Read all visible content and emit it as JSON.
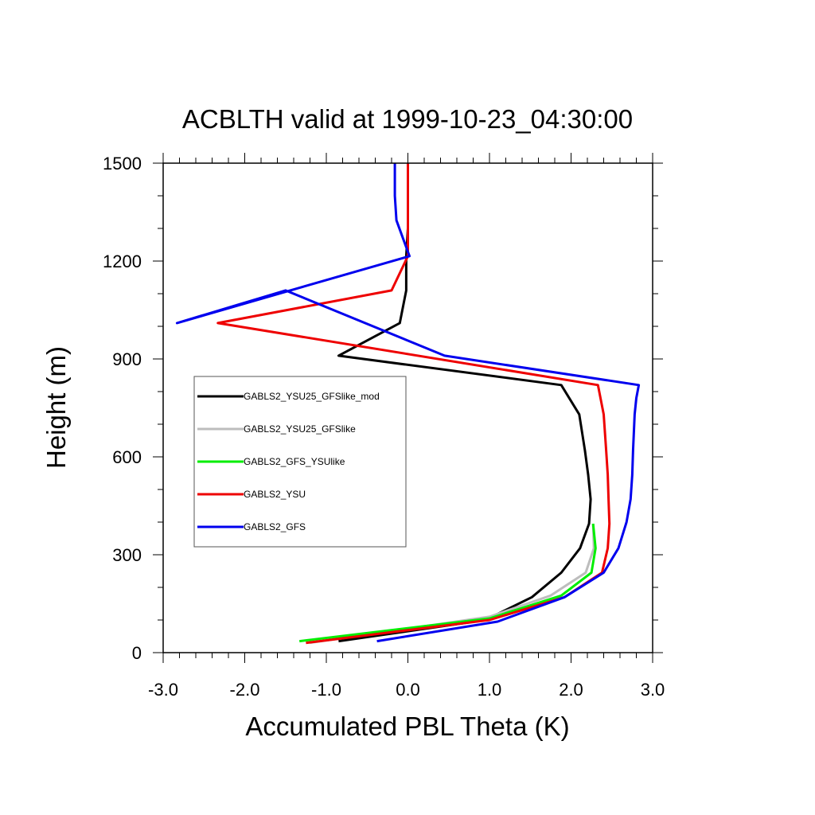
{
  "chart_data": {
    "type": "line",
    "title": "ACBLTH valid at 1999-10-23_04:30:00",
    "xlabel": "Accumulated PBL Theta (K)",
    "ylabel": "Height (m)",
    "xlim": [
      -3.0,
      3.0
    ],
    "ylim": [
      0,
      1500
    ],
    "xticks": [
      -3.0,
      -2.0,
      -1.0,
      0.0,
      1.0,
      2.0,
      3.0
    ],
    "xtick_labels": [
      "-3.0",
      "-2.0",
      "-1.0",
      "0.0",
      "1.0",
      "2.0",
      "3.0"
    ],
    "yticks": [
      0,
      300,
      600,
      900,
      1200,
      1500
    ],
    "ytick_labels": [
      "0",
      "300",
      "600",
      "900",
      "1200",
      "1500"
    ],
    "grid": false,
    "legend_position": "center-left",
    "series": [
      {
        "name": "GABLS2_YSU25_GFSlike_mod",
        "color": "#000000",
        "x": [
          -0.85,
          0.95,
          1.52,
          1.88,
          2.11,
          2.22,
          2.24,
          2.21,
          2.17,
          2.1,
          1.88,
          -0.85,
          -0.1,
          -0.02,
          -0.02,
          0.0,
          0.0,
          0.0,
          0.0
        ],
        "y": [
          35,
          100,
          170,
          245,
          320,
          395,
          470,
          545,
          620,
          730,
          820,
          910,
          1010,
          1110,
          1215,
          1300,
          1350,
          1400,
          1500
        ]
      },
      {
        "name": "GABLS2_YSU25_GFSlike",
        "color": "#bdbdbd",
        "x": [
          -1.2,
          1.0,
          1.75,
          2.18,
          2.28,
          2.27
        ],
        "y": [
          30,
          110,
          175,
          245,
          320,
          395
        ]
      },
      {
        "name": "GABLS2_GFS_YSUlike",
        "color": "#00ee00",
        "x": [
          -1.33,
          1.0,
          1.88,
          2.25,
          2.3,
          2.27
        ],
        "y": [
          35,
          105,
          175,
          245,
          320,
          395
        ]
      },
      {
        "name": "GABLS2_YSU",
        "color": "#ee0000",
        "x": [
          -1.25,
          1.0,
          1.92,
          2.38,
          2.45,
          2.47,
          2.46,
          2.45,
          2.43,
          2.4,
          2.33,
          -2.33,
          -0.2,
          0.0,
          0.0,
          0.0,
          0.0,
          0.0
        ],
        "y": [
          30,
          100,
          170,
          245,
          320,
          395,
          470,
          545,
          620,
          730,
          820,
          1010,
          1110,
          1215,
          1300,
          1350,
          1400,
          1500
        ]
      },
      {
        "name": "GABLS2_GFS",
        "color": "#0000ee",
        "x": [
          -0.38,
          1.1,
          1.92,
          2.4,
          2.58,
          2.68,
          2.73,
          2.75,
          2.76,
          2.78,
          2.8,
          2.83,
          0.45,
          -1.5,
          -2.83,
          0.02,
          -0.14,
          -0.16,
          -0.16,
          -0.16
        ],
        "y": [
          35,
          95,
          170,
          245,
          320,
          400,
          470,
          545,
          620,
          730,
          780,
          820,
          910,
          1110,
          1010,
          1215,
          1325,
          1400,
          1450,
          1500
        ]
      }
    ]
  }
}
